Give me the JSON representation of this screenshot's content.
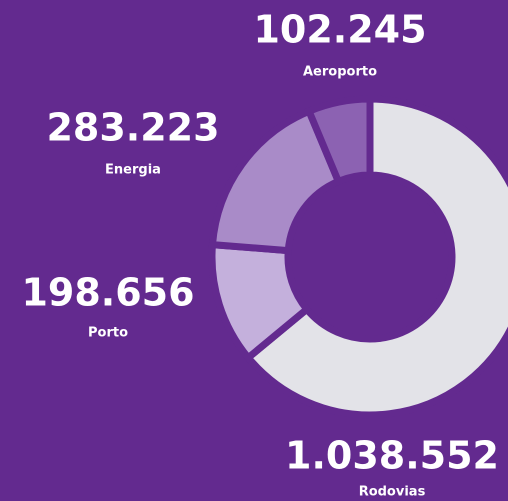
{
  "chart_data": {
    "type": "pie",
    "categories": [
      "Rodovias",
      "Porto",
      "Energia",
      "Aeroporto"
    ],
    "values": [
      1038552,
      198656,
      283223,
      102245
    ],
    "value_labels": [
      "1.038.552",
      "198.656",
      "283.223",
      "102.245"
    ],
    "colors": [
      "#e3e3e8",
      "#c4b0dc",
      "#a98bc8",
      "#8c62b2"
    ]
  }
}
